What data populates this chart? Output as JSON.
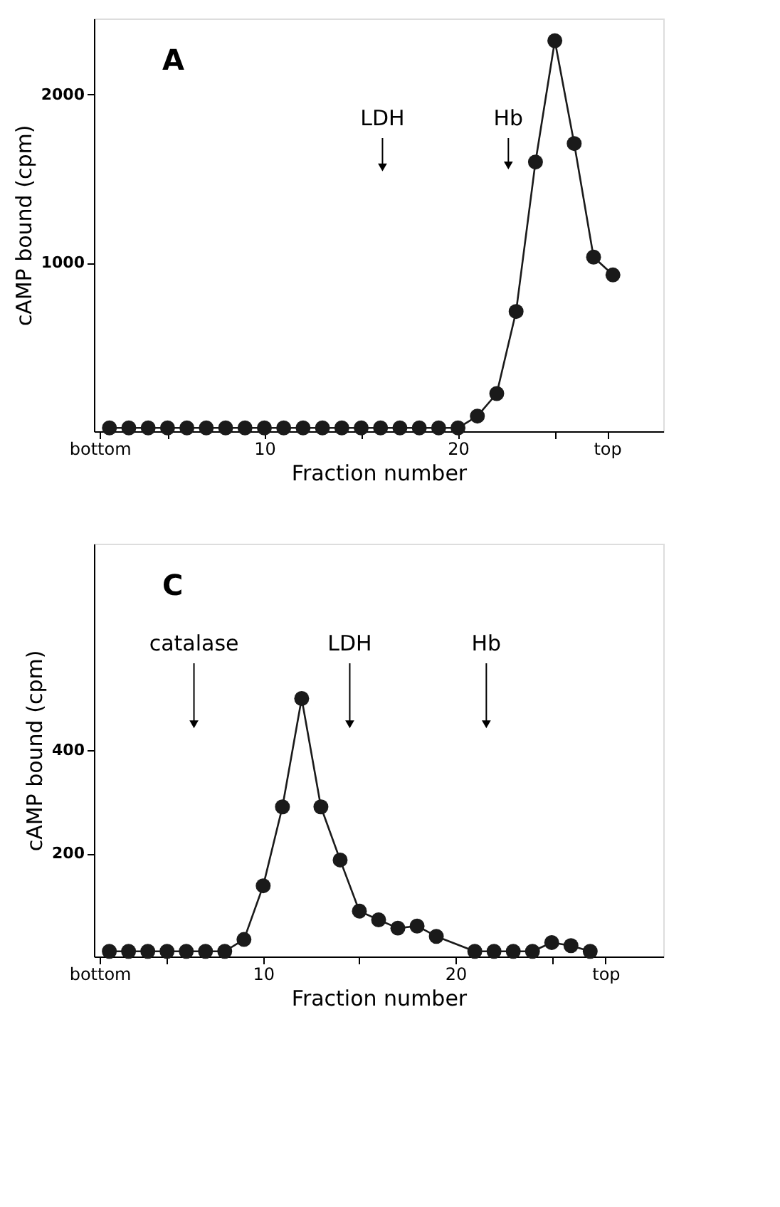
{
  "chart_data": [
    {
      "type": "line",
      "xlabel": "Fraction number",
      "ylabel": "cAMP bound (cpm)",
      "marker": "circle",
      "line_style": "solid",
      "grid": false,
      "xlim": [
        1.2,
        30.6
      ],
      "ylim": [
        0,
        2450
      ],
      "xticks": [
        {
          "value": 1.5,
          "label": "bottom"
        },
        {
          "value": 5,
          "label": null
        },
        10,
        {
          "value": 15,
          "label": null
        },
        20,
        {
          "value": 25,
          "label": null
        },
        {
          "value": 27.7,
          "label": "top"
        }
      ],
      "yticks": [
        1000,
        2000
      ],
      "annotations": [
        "A",
        {
          "text": "LDH",
          "x": 16.1,
          "y": 1566
        },
        {
          "text": "Hb",
          "x": 22.6,
          "y": 1578
        }
      ],
      "series": [
        {
          "color": "#1a1a1a",
          "x": [
            2,
            3,
            4,
            5,
            6,
            7,
            8,
            9,
            10,
            11,
            12,
            13,
            14,
            15,
            16,
            17,
            18,
            19,
            20,
            21,
            22,
            23,
            24,
            25,
            26,
            27,
            28
          ],
          "values": [
            20,
            20,
            20,
            20,
            20,
            20,
            20,
            20,
            20,
            20,
            20,
            20,
            20,
            20,
            20,
            20,
            20,
            20,
            20,
            90,
            224,
            711,
            1598,
            2318,
            1708,
            1034,
            928
          ]
        }
      ]
    },
    {
      "type": "line",
      "xlabel": "Fraction number",
      "ylabel": "cAMP bound (cpm)",
      "marker": "circle",
      "line_style": "solid",
      "grid": false,
      "xlim": [
        1.2,
        30.8
      ],
      "ylim": [
        0,
        800
      ],
      "xticks": [
        {
          "value": 1.5,
          "label": "bottom"
        },
        {
          "value": 5,
          "label": null
        },
        10,
        {
          "value": 15,
          "label": null
        },
        20,
        {
          "value": 25,
          "label": null
        },
        {
          "value": 27.8,
          "label": "top"
        }
      ],
      "yticks": [
        200,
        400
      ],
      "annotations": [
        "C",
        {
          "text": "catalase",
          "x": 6.4,
          "y": 450
        },
        {
          "text": "LDH",
          "x": 14.5,
          "y": 450
        },
        {
          "text": "Hb",
          "x": 21.6,
          "y": 450
        }
      ],
      "series": [
        {
          "color": "#1a1a1a",
          "x": [
            2,
            3,
            4,
            5,
            6,
            7,
            8,
            9,
            10,
            11,
            12,
            13,
            14,
            15,
            16,
            17,
            18,
            19,
            21,
            22,
            23,
            24,
            25,
            26,
            27
          ],
          "values": [
            10,
            10,
            10,
            10,
            10,
            10,
            10,
            33,
            137,
            290,
            500,
            290,
            187,
            88,
            71,
            55,
            59,
            39,
            10,
            10,
            10,
            10,
            27,
            21,
            10
          ]
        }
      ]
    }
  ]
}
